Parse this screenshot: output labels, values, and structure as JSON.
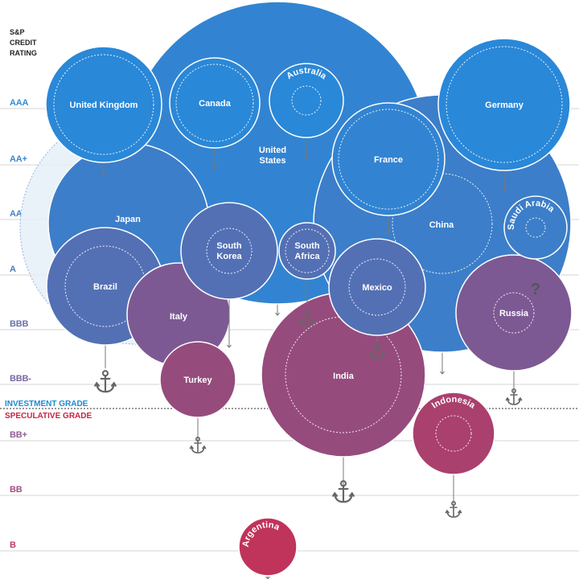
{
  "chart_data": {
    "type": "bubble",
    "y_axis_title": [
      "S&P",
      "CREDIT",
      "RATING"
    ],
    "ratings": [
      "AAA",
      "AA+",
      "AA",
      "A",
      "BBB",
      "BBB-",
      "BB+",
      "BB",
      "B"
    ],
    "divider": {
      "investment_label": "INVESTMENT GRADE",
      "speculative_label": "SPECULATIVE GRADE"
    },
    "colors": {
      "investment": "#2a88d8",
      "speculative": "#c0335a",
      "divider_investment": "#1a8ad4",
      "divider_speculative": "#cc2244",
      "grid": "#d6d6d6"
    },
    "countries": [
      {
        "name": "United States",
        "rating": "AA+",
        "anchor": "A"
      },
      {
        "name": "Japan",
        "rating": "AA",
        "anchor": "BBB"
      },
      {
        "name": "China",
        "rating": "AA",
        "anchor": "BBB-"
      },
      {
        "name": "United Kingdom",
        "rating": "AAA",
        "anchor": "AA+"
      },
      {
        "name": "Germany",
        "rating": "AAA",
        "anchor": "AA"
      },
      {
        "name": "Canada",
        "rating": "AAA",
        "anchor": "AA+"
      },
      {
        "name": "Australia",
        "rating": "AAA",
        "anchor": "AA+"
      },
      {
        "name": "France",
        "rating": "AA+",
        "anchor": "AA"
      },
      {
        "name": "South Korea",
        "rating": "A",
        "anchor": "BBB"
      },
      {
        "name": "South Africa",
        "rating": "A",
        "anchor": "BBB"
      },
      {
        "name": "Saudi Arabia",
        "rating": "AA",
        "anchor": "?"
      },
      {
        "name": "Brazil",
        "rating": "A",
        "anchor": "BBB-"
      },
      {
        "name": "Italy",
        "rating": "BBB",
        "anchor": "BBB-"
      },
      {
        "name": "Mexico",
        "rating": "A",
        "anchor": "BBB"
      },
      {
        "name": "Russia",
        "rating": "BBB",
        "anchor": "BB+"
      },
      {
        "name": "Turkey",
        "rating": "BBB-",
        "anchor": "BB+"
      },
      {
        "name": "India",
        "rating": "BBB-",
        "anchor": "BB"
      },
      {
        "name": "Indonesia",
        "rating": "BB+",
        "anchor": "BB"
      },
      {
        "name": "Argentina",
        "rating": "B",
        "anchor": ""
      }
    ],
    "question_mark": "?"
  }
}
